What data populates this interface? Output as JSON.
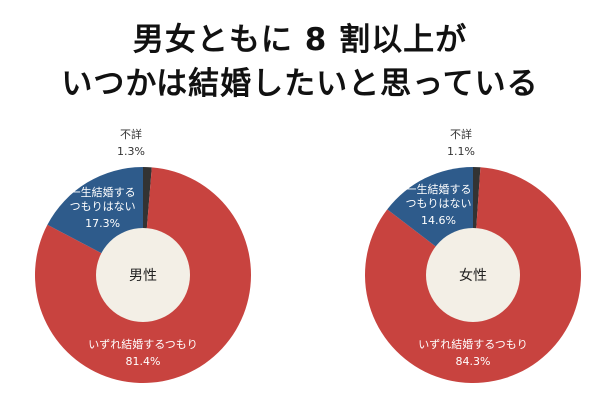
{
  "title": [
    "男女ともに 8 割以上が",
    "いつかは結婚したいと思っている"
  ],
  "chart_data": [
    {
      "type": "pie",
      "center_label": "男性",
      "categories": [
        "不詳",
        "いずれ結婚するつもり",
        "一生結婚するつもりはない"
      ],
      "values": [
        1.3,
        81.4,
        17.3
      ],
      "value_labels": [
        "1.3%",
        "81.4%",
        "17.3%"
      ],
      "colors": [
        "#333333",
        "#c8433f",
        "#2e5b8b"
      ]
    },
    {
      "type": "pie",
      "center_label": "女性",
      "categories": [
        "不詳",
        "いずれ結婚するつもり",
        "一生結婚するつもりはない"
      ],
      "values": [
        1.1,
        84.3,
        14.6
      ],
      "value_labels": [
        "1.1%",
        "84.3%",
        "14.6%"
      ],
      "colors": [
        "#333333",
        "#c8433f",
        "#2e5b8b"
      ]
    }
  ]
}
